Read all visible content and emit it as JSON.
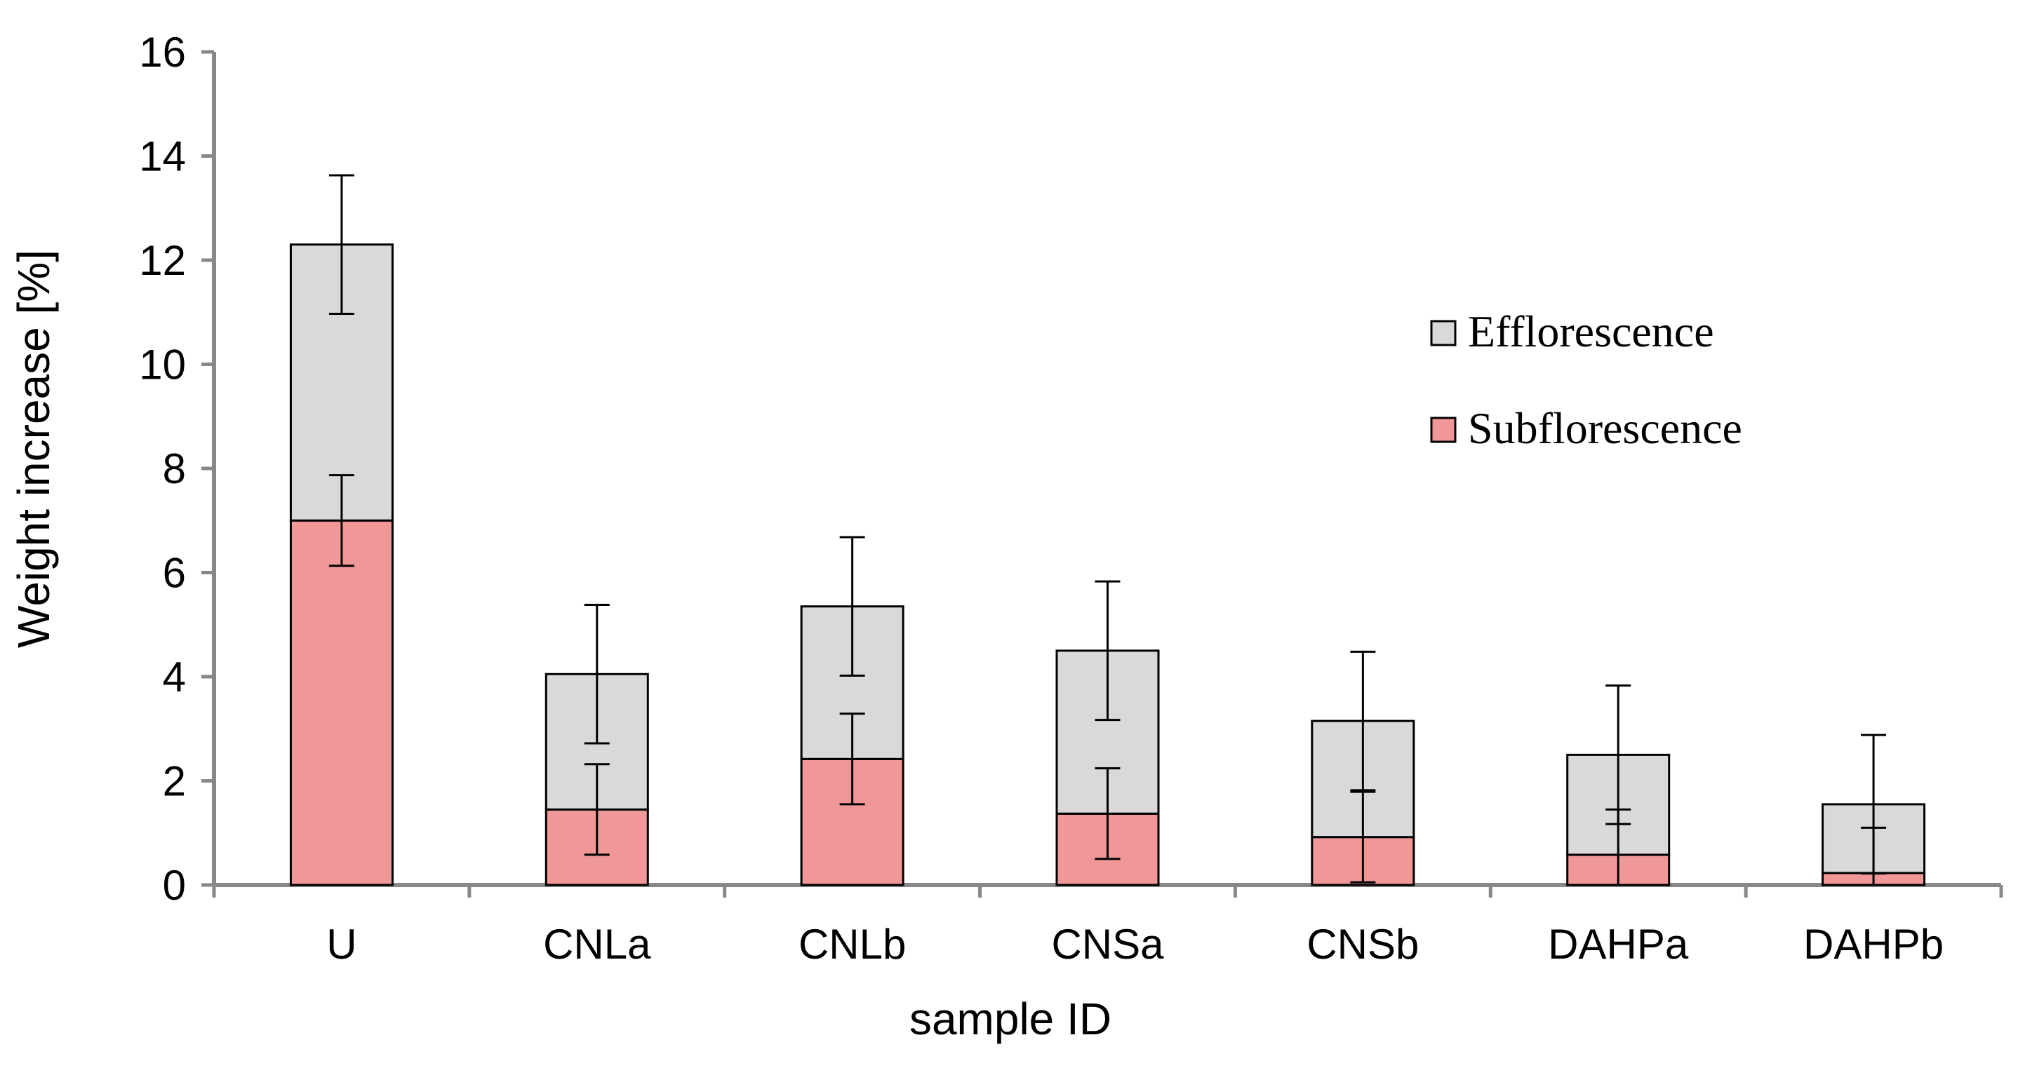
{
  "chart_data": {
    "type": "bar",
    "stacked": true,
    "title": "",
    "xlabel": "sample ID",
    "ylabel": "Weight increase [%]",
    "ylim": [
      0,
      16
    ],
    "yticks": [
      0,
      2,
      4,
      6,
      8,
      10,
      12,
      14,
      16
    ],
    "grid": false,
    "legend": "right",
    "categories": [
      "U",
      "CNLa",
      "CNLb",
      "CNSa",
      "CNSb",
      "DAHPa",
      "DAHPb"
    ],
    "series": [
      {
        "name": "Subflorescence",
        "color": "#F09898",
        "values": [
          7.0,
          1.45,
          2.42,
          1.37,
          0.92,
          0.58,
          0.23
        ],
        "error": [
          0.87,
          0.87,
          0.87,
          0.87,
          0.87,
          0.87,
          0.87
        ]
      },
      {
        "name": "Efflorescence",
        "color": "#D9D9D9",
        "values": [
          5.3,
          2.6,
          2.93,
          3.13,
          2.23,
          1.92,
          1.32
        ],
        "error": [
          1.33,
          1.33,
          1.33,
          1.33,
          1.33,
          1.33,
          1.33
        ]
      }
    ],
    "legend_order": [
      "Efflorescence",
      "Subflorescence"
    ]
  }
}
